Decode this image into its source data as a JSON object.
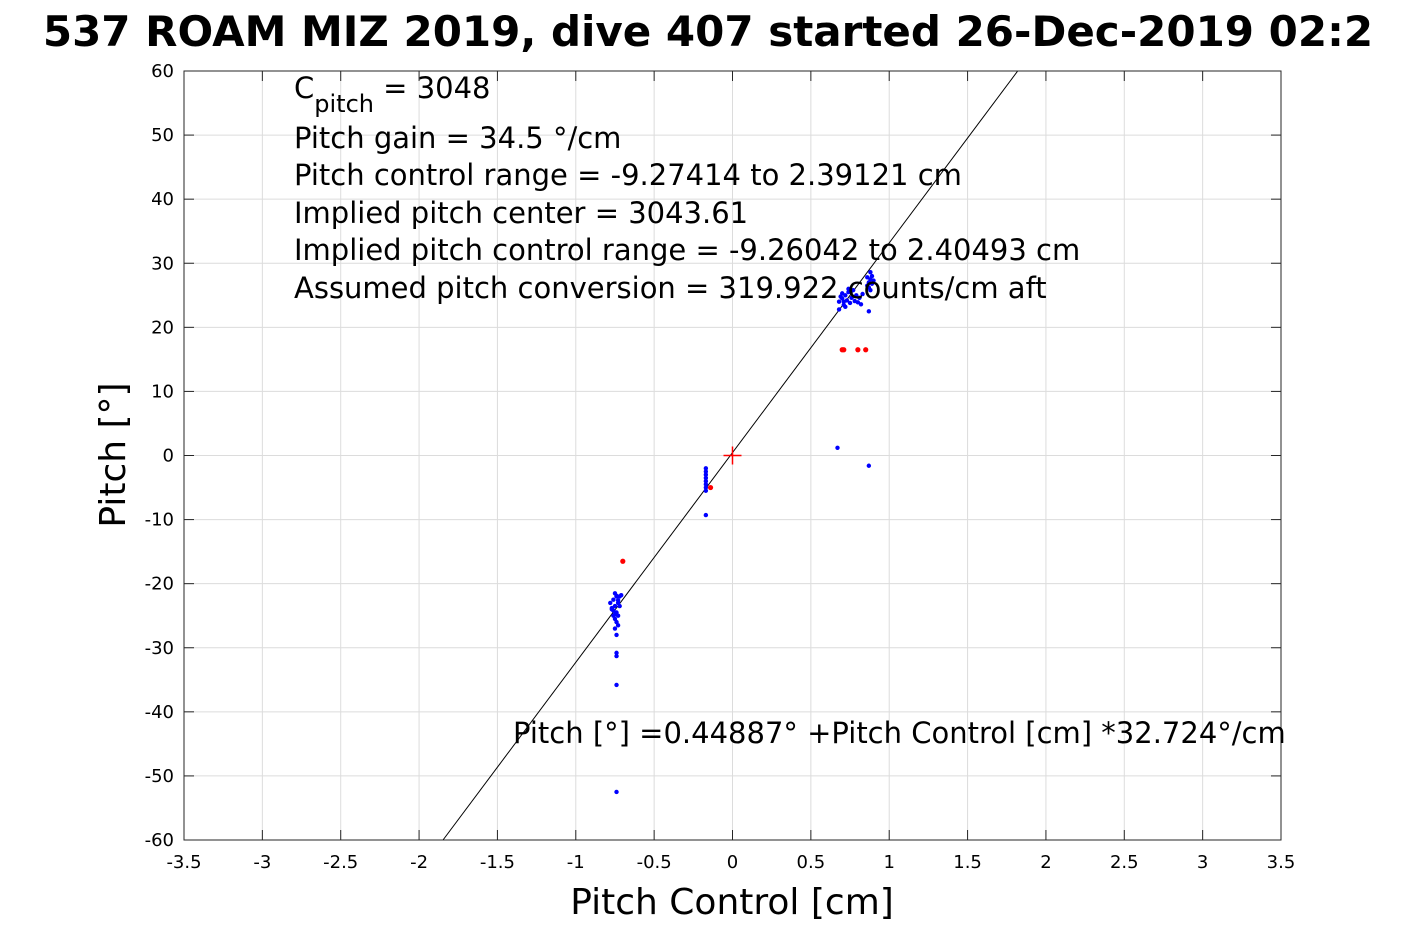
{
  "chart_data": {
    "type": "scatter",
    "title": "537 ROAM MIZ 2019, dive 407 started 26-Dec-2019 02:2",
    "xlabel": "Pitch Control [cm]",
    "ylabel": "Pitch [°]",
    "xlim": [
      -3.5,
      3.5
    ],
    "ylim": [
      -60,
      60
    ],
    "xticks": [
      -3.5,
      -3,
      -2.5,
      -2,
      -1.5,
      -1,
      -0.5,
      0,
      0.5,
      1,
      1.5,
      2,
      2.5,
      3,
      3.5
    ],
    "xtick_labels": [
      "-3.5",
      "-3",
      "-2.5",
      "-2",
      "-1.5",
      "-1",
      "-0.5",
      "0",
      "0.5",
      "1",
      "1.5",
      "2",
      "2.5",
      "3",
      "3.5"
    ],
    "yticks": [
      -60,
      -50,
      -40,
      -30,
      -20,
      -10,
      0,
      10,
      20,
      30,
      40,
      50,
      60
    ],
    "ytick_labels": [
      "-60",
      "-50",
      "-40",
      "-30",
      "-20",
      "-10",
      "0",
      "10",
      "20",
      "30",
      "40",
      "50",
      "60"
    ],
    "grid": true,
    "annotations": {
      "cpitch_main": "C",
      "cpitch_sub": "pitch",
      "cpitch_value": " = 3048",
      "lines": [
        "Pitch gain = 34.5 °/cm",
        "Pitch control range = -9.27414 to 2.39121 cm",
        "Implied pitch center = 3043.61",
        "Implied pitch control range = -9.26042 to 2.40493 cm",
        "Assumed pitch conversion = 319.922 counts/cm aft"
      ],
      "fit_equation": "Pitch [°] =0.44887° +Pitch Control [cm] *32.724°/cm"
    },
    "fit_line": {
      "intercept": 0.44887,
      "slope": 32.724
    },
    "center_marker": {
      "x": 0,
      "y": 0,
      "color": "#ff0000"
    },
    "series": [
      {
        "color": "#0000ff",
        "points": [
          [
            -0.75,
            -21.5
          ],
          [
            -0.74,
            -22
          ],
          [
            -0.76,
            -22.5
          ],
          [
            -0.73,
            -23
          ],
          [
            -0.75,
            -23.5
          ],
          [
            -0.77,
            -24
          ],
          [
            -0.74,
            -24.5
          ],
          [
            -0.72,
            -22
          ],
          [
            -0.71,
            -21.8
          ],
          [
            -0.76,
            -25
          ],
          [
            -0.75,
            -25.5
          ],
          [
            -0.74,
            -26
          ],
          [
            -0.73,
            -26.5
          ],
          [
            -0.75,
            -27
          ],
          [
            -0.74,
            -28
          ],
          [
            -0.73,
            -25
          ],
          [
            -0.78,
            -23
          ],
          [
            -0.72,
            -23.5
          ],
          [
            -0.76,
            -24.2
          ],
          [
            -0.74,
            -21.9
          ],
          [
            -0.73,
            -22.6
          ],
          [
            -0.77,
            -23.8
          ],
          [
            -0.75,
            -24.8
          ],
          [
            -0.74,
            -30.8
          ],
          [
            -0.74,
            -31.3
          ],
          [
            -0.74,
            -35.8
          ],
          [
            -0.74,
            -52.5
          ],
          [
            -0.17,
            -2
          ],
          [
            -0.17,
            -2.5
          ],
          [
            -0.17,
            -3
          ],
          [
            -0.17,
            -3.5
          ],
          [
            -0.17,
            -4
          ],
          [
            -0.17,
            -4.5
          ],
          [
            -0.17,
            -5
          ],
          [
            -0.17,
            -5.5
          ],
          [
            -0.17,
            -9.3
          ],
          [
            0.68,
            24
          ],
          [
            0.7,
            24.5
          ],
          [
            0.72,
            25
          ],
          [
            0.74,
            25.5
          ],
          [
            0.71,
            23.5
          ],
          [
            0.69,
            24.8
          ],
          [
            0.73,
            24.2
          ],
          [
            0.75,
            23.8
          ],
          [
            0.7,
            25.3
          ],
          [
            0.72,
            23.2
          ],
          [
            0.76,
            24.6
          ],
          [
            0.78,
            24.1
          ],
          [
            0.8,
            23.9
          ],
          [
            0.81,
            24.6
          ],
          [
            0.83,
            25.2
          ],
          [
            0.82,
            23.6
          ],
          [
            0.79,
            25
          ],
          [
            0.77,
            25.8
          ],
          [
            0.74,
            26
          ],
          [
            0.71,
            24
          ],
          [
            0.86,
            26.5
          ],
          [
            0.87,
            27
          ],
          [
            0.88,
            27.5
          ],
          [
            0.89,
            28
          ],
          [
            0.88,
            28.6
          ],
          [
            0.86,
            27.8
          ],
          [
            0.89,
            26.8
          ],
          [
            0.9,
            27.3
          ],
          [
            0.87,
            26.2
          ],
          [
            0.88,
            25.8
          ],
          [
            0.68,
            22.8
          ],
          [
            0.87,
            22.5
          ],
          [
            0.67,
            1.2
          ],
          [
            0.87,
            -1.6
          ]
        ]
      },
      {
        "color": "#ff0000",
        "points": [
          [
            -0.7,
            -16.5
          ],
          [
            -0.14,
            -5
          ],
          [
            0.7,
            16.5
          ],
          [
            0.71,
            16.5
          ],
          [
            0.8,
            16.5
          ],
          [
            0.85,
            16.5
          ]
        ]
      }
    ]
  }
}
